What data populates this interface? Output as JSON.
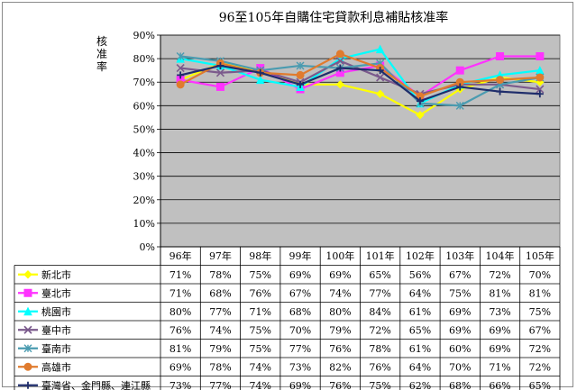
{
  "chart_data": {
    "type": "line",
    "title": "96至105年自購住宅貸款利息補貼核准率",
    "ylabel": "核准率",
    "ylim": [
      0,
      90
    ],
    "yticks": [
      "0%",
      "10%",
      "20%",
      "30%",
      "40%",
      "50%",
      "60%",
      "70%",
      "80%",
      "90%"
    ],
    "grid": true,
    "legend": "data-table",
    "categories": [
      "96年",
      "97年",
      "98年",
      "99年",
      "100年",
      "101年",
      "102年",
      "103年",
      "104年",
      "105年"
    ],
    "series": [
      {
        "name": "新北市",
        "color": "#ffff00",
        "marker": "diamond",
        "values": [
          71,
          78,
          75,
          69,
          69,
          65,
          56,
          67,
          72,
          70
        ],
        "labels": [
          "71%",
          "78%",
          "75%",
          "69%",
          "69%",
          "65%",
          "56%",
          "67%",
          "72%",
          "70%"
        ]
      },
      {
        "name": "臺北市",
        "color": "#ff33ff",
        "marker": "square",
        "values": [
          71,
          68,
          76,
          67,
          74,
          77,
          64,
          75,
          81,
          81
        ],
        "labels": [
          "71%",
          "68%",
          "76%",
          "67%",
          "74%",
          "77%",
          "64%",
          "75%",
          "81%",
          "81%"
        ]
      },
      {
        "name": "桃園市",
        "color": "#00ffff",
        "marker": "triangle",
        "values": [
          80,
          77,
          71,
          68,
          80,
          84,
          61,
          69,
          73,
          75
        ],
        "labels": [
          "80%",
          "77%",
          "71%",
          "68%",
          "80%",
          "84%",
          "61%",
          "69%",
          "73%",
          "75%"
        ]
      },
      {
        "name": "臺中市",
        "color": "#7b5a8c",
        "marker": "x",
        "values": [
          76,
          74,
          75,
          70,
          79,
          72,
          65,
          69,
          69,
          67
        ],
        "labels": [
          "76%",
          "74%",
          "75%",
          "70%",
          "79%",
          "72%",
          "65%",
          "69%",
          "69%",
          "67%"
        ]
      },
      {
        "name": "臺南市",
        "color": "#4a9bb0",
        "marker": "star",
        "values": [
          81,
          79,
          75,
          77,
          76,
          78,
          61,
          60,
          69,
          72
        ],
        "labels": [
          "81%",
          "79%",
          "75%",
          "77%",
          "76%",
          "78%",
          "61%",
          "60%",
          "69%",
          "72%"
        ]
      },
      {
        "name": "高雄市",
        "color": "#e07b2e",
        "marker": "circle",
        "values": [
          69,
          78,
          74,
          73,
          82,
          76,
          64,
          70,
          71,
          72
        ],
        "labels": [
          "69%",
          "78%",
          "74%",
          "73%",
          "82%",
          "76%",
          "64%",
          "70%",
          "71%",
          "72%"
        ]
      },
      {
        "name": "臺灣省、金門縣、連江縣",
        "color": "#1f2d6b",
        "marker": "plus",
        "values": [
          73,
          77,
          74,
          69,
          76,
          75,
          62,
          68,
          66,
          65
        ],
        "labels": [
          "73%",
          "77%",
          "74%",
          "69%",
          "76%",
          "75%",
          "62%",
          "68%",
          "66%",
          "65%"
        ]
      }
    ]
  }
}
